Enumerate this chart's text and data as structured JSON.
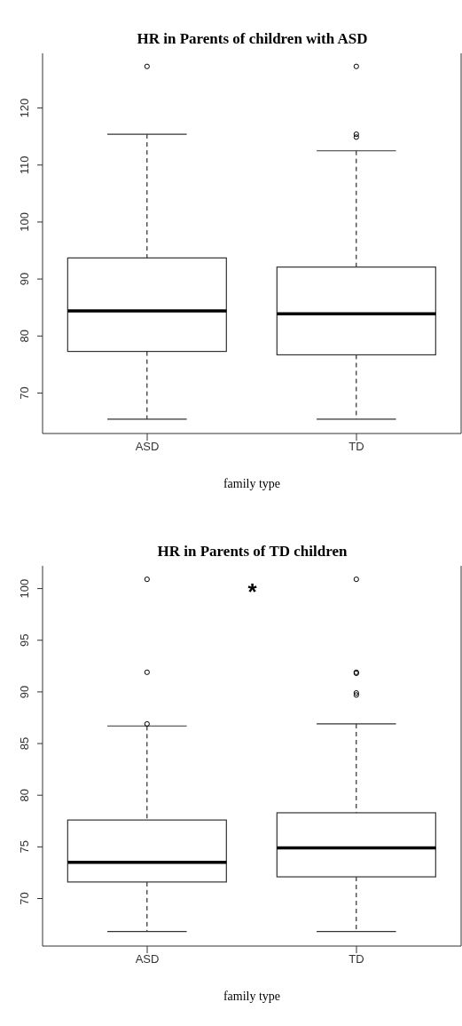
{
  "chart_data": [
    {
      "type": "box",
      "title": "HR in Parents of children with ASD",
      "xlabel": "family type",
      "categories": [
        "ASD",
        "TD"
      ],
      "boxes": [
        {
          "low": 65.4,
          "q1": 77.3,
          "median": 84.4,
          "q3": 93.7,
          "high": 115.4,
          "outliers": [
            127.3
          ]
        },
        {
          "low": 65.4,
          "q1": 76.7,
          "median": 83.9,
          "q3": 92.1,
          "high": 112.5,
          "outliers": [
            127.3,
            115.4,
            114.9
          ]
        }
      ],
      "ylim": [
        62.9,
        129.6
      ],
      "yticks": [
        70,
        80,
        90,
        100,
        110,
        120
      ]
    },
    {
      "type": "box",
      "title": "HR in Parents of TD children",
      "xlabel": "family type",
      "categories": [
        "ASD",
        "TD"
      ],
      "boxes": [
        {
          "low": 66.8,
          "q1": 71.6,
          "median": 73.5,
          "q3": 77.6,
          "high": 86.7,
          "outliers": [
            100.9,
            91.9,
            86.9
          ]
        },
        {
          "low": 66.8,
          "q1": 72.1,
          "median": 74.9,
          "q3": 78.3,
          "high": 86.9,
          "outliers": [
            100.9,
            91.9,
            91.8,
            89.9,
            89.7
          ]
        }
      ],
      "ylim": [
        65.4,
        102.2
      ],
      "yticks": [
        70,
        75,
        80,
        85,
        90,
        95,
        100
      ],
      "annotations": [
        "*"
      ]
    }
  ]
}
